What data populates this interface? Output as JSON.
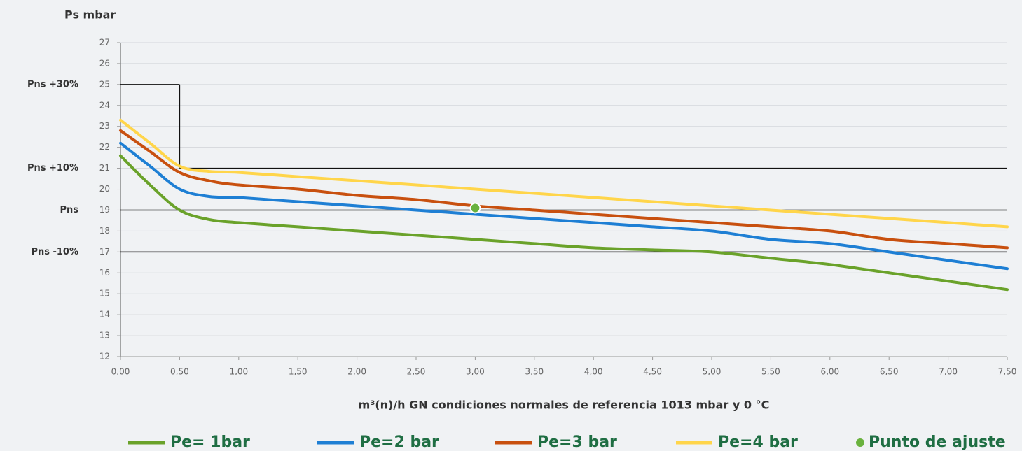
{
  "chart_data": {
    "type": "line",
    "title": "Ps mbar",
    "x_label": "m³(n)/h GN condiciones normales de referencia 1013 mbar y 0 °C",
    "x": [
      0,
      0.25,
      0.5,
      0.75,
      1,
      1.5,
      2,
      2.5,
      3,
      3.5,
      4,
      4.5,
      5,
      5.5,
      6,
      6.5,
      7,
      7.5
    ],
    "series": [
      {
        "name": "Pe= 1bar",
        "color": "#6aa22a",
        "values": [
          21.6,
          20.2,
          19.0,
          18.55,
          18.4,
          18.2,
          18.0,
          17.8,
          17.6,
          17.4,
          17.2,
          17.1,
          17.0,
          16.7,
          16.4,
          16.0,
          15.6,
          15.2
        ]
      },
      {
        "name": "Pe=2 bar",
        "color": "#1e7fd4",
        "values": [
          22.2,
          21.1,
          20.0,
          19.65,
          19.6,
          19.4,
          19.2,
          19.0,
          18.8,
          18.6,
          18.4,
          18.2,
          18.0,
          17.6,
          17.4,
          17.0,
          16.6,
          16.2
        ]
      },
      {
        "name": "Pe=3 bar",
        "color": "#c8500f",
        "values": [
          22.8,
          21.8,
          20.8,
          20.4,
          20.2,
          20.0,
          19.7,
          19.5,
          19.2,
          19.0,
          18.8,
          18.6,
          18.4,
          18.2,
          18.0,
          17.6,
          17.4,
          17.2
        ]
      },
      {
        "name": "Pe=4 bar",
        "color": "#ffd54a",
        "values": [
          23.3,
          22.2,
          21.1,
          20.85,
          20.8,
          20.6,
          20.4,
          20.2,
          20.0,
          19.8,
          19.6,
          19.4,
          19.2,
          19.0,
          18.8,
          18.6,
          18.4,
          18.2
        ]
      }
    ],
    "point": {
      "name": "Punto de ajuste",
      "color": "#6ab23e",
      "x": 3,
      "y": 19.1
    },
    "reference_lines": [
      {
        "label": "Pns +30%",
        "value": 25,
        "xrange": [
          0,
          0.5
        ]
      },
      {
        "label": "Pns +10%",
        "value": 21,
        "xrange": [
          0.5,
          7.5
        ]
      },
      {
        "label": "Pns",
        "value": 19,
        "xrange": [
          0,
          7.5
        ]
      },
      {
        "label": "Pns -10%",
        "value": 17,
        "xrange": [
          0,
          7.5
        ]
      }
    ],
    "xlim": [
      0,
      7.5
    ],
    "ylim": [
      12,
      27
    ],
    "xticks": [
      {
        "value": 0,
        "label": "0,00"
      },
      {
        "value": 0.5,
        "label": "0,50"
      },
      {
        "value": 1,
        "label": "1,00"
      },
      {
        "value": 1.5,
        "label": "1,50"
      },
      {
        "value": 2,
        "label": "2,00"
      },
      {
        "value": 2.5,
        "label": "2,50"
      },
      {
        "value": 3,
        "label": "3,00"
      },
      {
        "value": 3.5,
        "label": "3,50"
      },
      {
        "value": 4,
        "label": "4,00"
      },
      {
        "value": 4.5,
        "label": "4,50"
      },
      {
        "value": 5,
        "label": "5,00"
      },
      {
        "value": 5.5,
        "label": "5,50"
      },
      {
        "value": 6,
        "label": "6,00"
      },
      {
        "value": 6.5,
        "label": "6,50"
      },
      {
        "value": 7,
        "label": "7,00"
      },
      {
        "value": 7.5,
        "label": "7,50"
      }
    ],
    "yticks": [
      12,
      13,
      14,
      15,
      16,
      17,
      18,
      19,
      20,
      21,
      22,
      23,
      24,
      25,
      26,
      27
    ],
    "grid": true
  }
}
